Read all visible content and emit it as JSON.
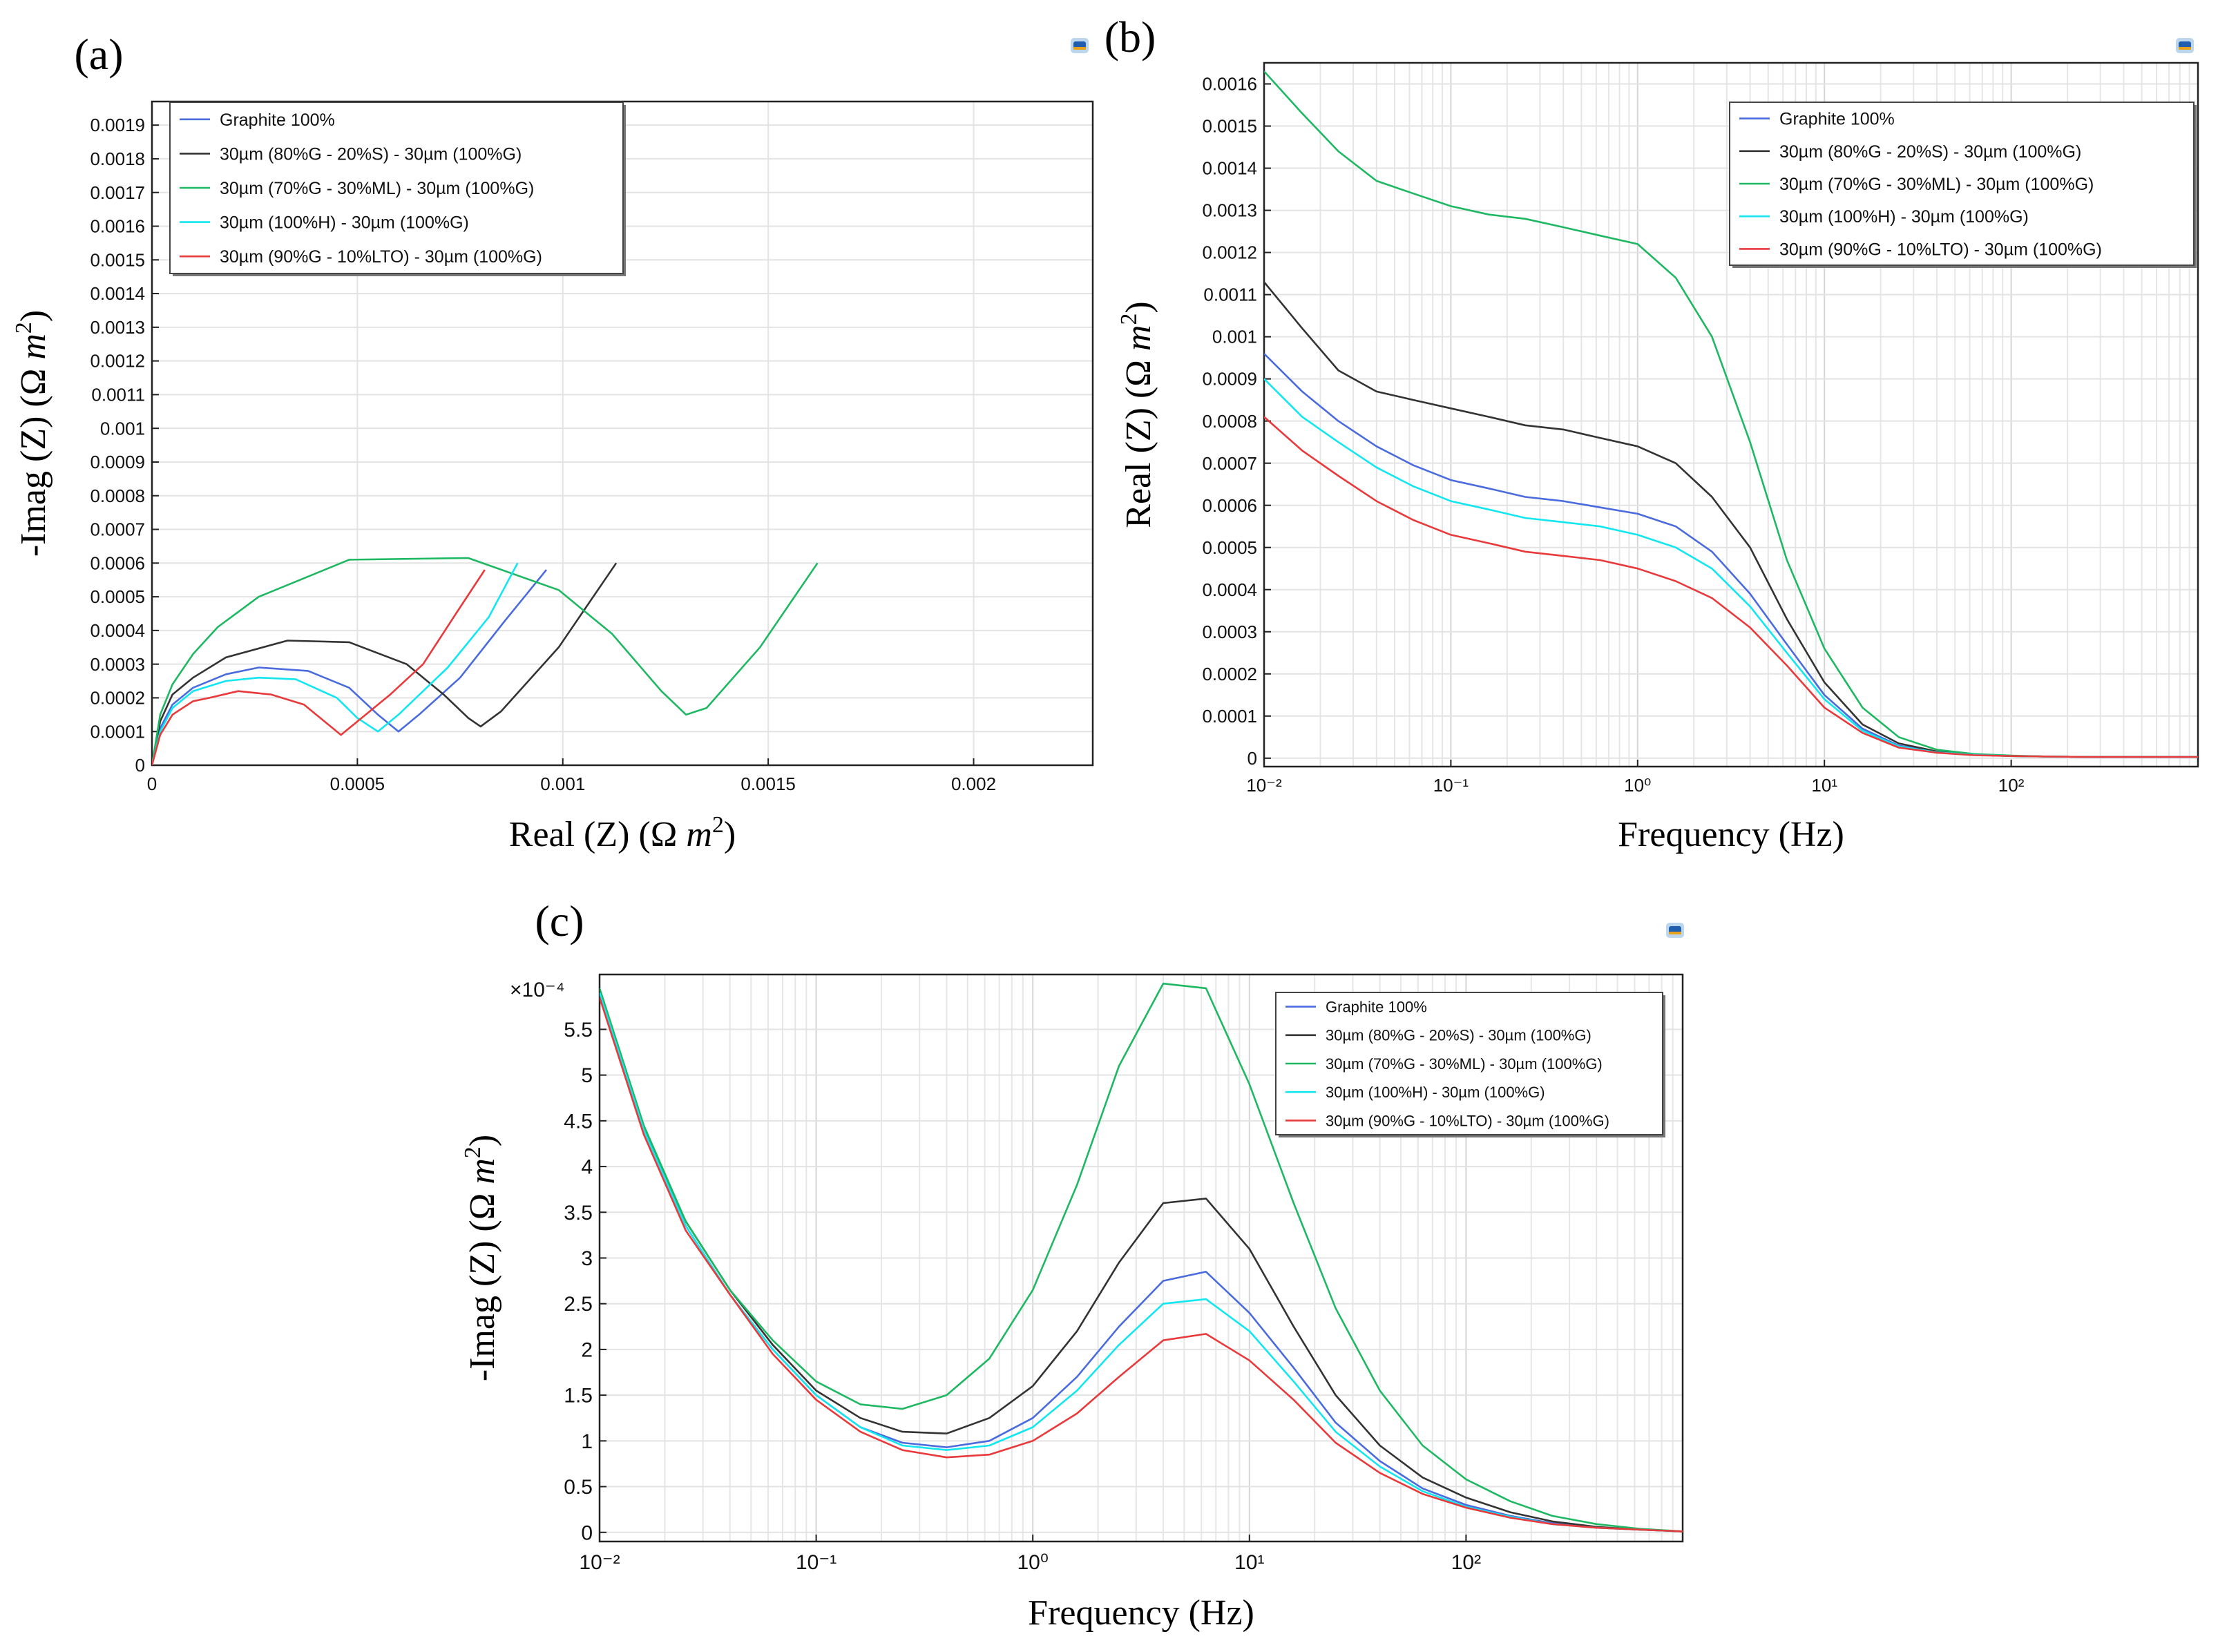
{
  "series_styles": [
    {
      "name": "Graphite 100%",
      "color": "#4a6bde"
    },
    {
      "name": "30µm (80%G - 20%S) - 30µm (100%G)",
      "color": "#333333"
    },
    {
      "name": "30µm (70%G - 30%ML) - 30µm (100%G)",
      "color": "#1db861"
    },
    {
      "name": "30µm (100%H) - 30µm (100%G)",
      "color": "#12e6f0"
    },
    {
      "name": "30µm (90%G - 10%LTO) - 30µm (100%G)",
      "color": "#e8393b"
    }
  ],
  "icons": {
    "toolbar": "comsol-logo-icon"
  },
  "chart_data": [
    {
      "id": "a",
      "panel_label": "(a)",
      "type": "line",
      "xlabel": "Real (Z) (Ω m²)",
      "ylabel": "-Imag (Z) (Ω m²)",
      "xlim": [
        0,
        0.00229
      ],
      "ylim": [
        0,
        0.00197
      ],
      "xscale": "linear",
      "xticks": [
        0,
        0.0005,
        0.001,
        0.0015,
        0.002
      ],
      "xtick_labels": [
        "0",
        "0.0005",
        "0.001",
        "0.0015",
        "0.002"
      ],
      "yticks": [
        0,
        0.0001,
        0.0002,
        0.0003,
        0.0004,
        0.0005,
        0.0006,
        0.0007,
        0.0008,
        0.0009,
        0.001,
        0.0011,
        0.0012,
        0.0013,
        0.0014,
        0.0015,
        0.0016,
        0.0017,
        0.0018,
        0.0019
      ],
      "ytick_labels": [
        "0",
        "0.0001",
        "0.0002",
        "0.0003",
        "0.0004",
        "0.0005",
        "0.0006",
        "0.0007",
        "0.0008",
        "0.0009",
        "0.001",
        "0.0011",
        "0.0012",
        "0.0013",
        "0.0014",
        "0.0015",
        "0.0016",
        "0.0017",
        "0.0018",
        "0.0019"
      ],
      "grid": true,
      "legend_position": "top-left",
      "series": [
        {
          "name": "Graphite 100%",
          "x": [
            0,
            2e-05,
            5e-05,
            0.0001,
            0.00018,
            0.00026,
            0.00038,
            0.00048,
            0.00055,
            0.0006,
            0.00065,
            0.00075,
            0.00086,
            0.00096
          ],
          "y": [
            0,
            0.00011,
            0.00018,
            0.00023,
            0.00027,
            0.00029,
            0.00028,
            0.00023,
            0.00015,
            0.0001,
            0.00015,
            0.00026,
            0.00043,
            0.00058
          ]
        },
        {
          "name": "30µm (80%G - 20%S) - 30µm (100%G)",
          "x": [
            0,
            2e-05,
            5e-05,
            0.0001,
            0.00018,
            0.00033,
            0.00048,
            0.00062,
            0.00071,
            0.00077,
            0.0008,
            0.00085,
            0.00099,
            0.00113
          ],
          "y": [
            0,
            0.00013,
            0.00021,
            0.00026,
            0.00032,
            0.00037,
            0.000365,
            0.0003,
            0.00021,
            0.00014,
            0.000115,
            0.00016,
            0.00035,
            0.0006
          ]
        },
        {
          "name": "30µm (70%G - 30%ML) - 30µm (100%G)",
          "x": [
            0,
            2e-05,
            5e-05,
            0.0001,
            0.00016,
            0.00026,
            0.00048,
            0.00077,
            0.00099,
            0.00112,
            0.00124,
            0.0013,
            0.00135,
            0.00148,
            0.00162
          ],
          "y": [
            0,
            0.00015,
            0.00024,
            0.00033,
            0.00041,
            0.0005,
            0.00061,
            0.000615,
            0.00052,
            0.00039,
            0.00022,
            0.00015,
            0.00017,
            0.00035,
            0.0006
          ]
        },
        {
          "name": "30µm (100%H) - 30µm (100%G)",
          "x": [
            0,
            2e-05,
            5e-05,
            0.0001,
            0.00018,
            0.00026,
            0.00035,
            0.00045,
            0.0005,
            0.00055,
            0.0006,
            0.00072,
            0.00082,
            0.00089
          ],
          "y": [
            0,
            0.0001,
            0.00017,
            0.00022,
            0.00025,
            0.00026,
            0.000255,
            0.0002,
            0.00014,
            0.0001,
            0.00015,
            0.00029,
            0.00044,
            0.0006
          ]
        },
        {
          "name": "30µm (90%G - 10%LTO) - 30µm (100%G)",
          "x": [
            0,
            2e-05,
            5e-05,
            0.0001,
            0.00014,
            0.00021,
            0.00029,
            0.00037,
            0.00042,
            0.00046,
            0.0005,
            0.00058,
            0.00066,
            0.00074,
            0.00081
          ],
          "y": [
            0,
            9e-05,
            0.00015,
            0.00019,
            0.0002,
            0.00022,
            0.00021,
            0.00018,
            0.00013,
            9e-05,
            0.00013,
            0.00021,
            0.0003,
            0.00045,
            0.00058
          ]
        }
      ]
    },
    {
      "id": "b",
      "panel_label": "(b)",
      "type": "line",
      "xlabel": "Frequency (Hz)",
      "ylabel": "Real (Z) (Ω m²)",
      "xlim": [
        0.01,
        1000
      ],
      "ylim": [
        -2e-05,
        0.00165
      ],
      "xscale": "log",
      "xticks": [
        0.01,
        0.1,
        1,
        10,
        100
      ],
      "xtick_labels": [
        "10⁻²",
        "10⁻¹",
        "10⁰",
        "10¹",
        "10²"
      ],
      "yticks": [
        0,
        0.0001,
        0.0002,
        0.0003,
        0.0004,
        0.0005,
        0.0006,
        0.0007,
        0.0008,
        0.0009,
        0.001,
        0.0011,
        0.0012,
        0.0013,
        0.0014,
        0.0015,
        0.0016
      ],
      "ytick_labels": [
        "0",
        "0.0001",
        "0.0002",
        "0.0003",
        "0.0004",
        "0.0005",
        "0.0006",
        "0.0007",
        "0.0008",
        "0.0009",
        "0.001",
        "0.0011",
        "0.0012",
        "0.0013",
        "0.0014",
        "0.0015",
        "0.0016"
      ],
      "grid": true,
      "legend_position": "top-right",
      "x": [
        0.01,
        0.016,
        0.025,
        0.04,
        0.063,
        0.1,
        0.16,
        0.25,
        0.4,
        0.63,
        1,
        1.6,
        2.5,
        4,
        6.3,
        10,
        16,
        25,
        40,
        63,
        100,
        160,
        250,
        400,
        630,
        1000
      ],
      "series": [
        {
          "name": "Graphite 100%",
          "y": [
            0.00096,
            0.00087,
            0.0008,
            0.00074,
            0.000695,
            0.00066,
            0.00064,
            0.00062,
            0.00061,
            0.000595,
            0.00058,
            0.00055,
            0.00049,
            0.00039,
            0.00027,
            0.00015,
            7e-05,
            3e-05,
            1.5e-05,
            8e-06,
            5e-06,
            4e-06,
            3e-06,
            3e-06,
            3e-06,
            3e-06
          ]
        },
        {
          "name": "30µm (80%G - 20%S) - 30µm (100%G)",
          "y": [
            0.00113,
            0.00102,
            0.00092,
            0.00087,
            0.00085,
            0.00083,
            0.00081,
            0.00079,
            0.00078,
            0.00076,
            0.00074,
            0.0007,
            0.00062,
            0.0005,
            0.00033,
            0.00018,
            8e-05,
            3.5e-05,
            1.6e-05,
            9e-06,
            5e-06,
            4e-06,
            3e-06,
            3e-06,
            3e-06,
            3e-06
          ]
        },
        {
          "name": "30µm (70%G - 30%ML) - 30µm (100%G)",
          "y": [
            0.00163,
            0.00153,
            0.00144,
            0.00137,
            0.00134,
            0.00131,
            0.00129,
            0.00128,
            0.00126,
            0.00124,
            0.00122,
            0.00114,
            0.001,
            0.00075,
            0.00047,
            0.00026,
            0.00012,
            5e-05,
            2e-05,
            1e-05,
            6e-06,
            4e-06,
            3e-06,
            3e-06,
            3e-06,
            3e-06
          ]
        },
        {
          "name": "30µm (100%H) - 30µm (100%G)",
          "y": [
            0.0009,
            0.00081,
            0.00075,
            0.00069,
            0.000645,
            0.00061,
            0.00059,
            0.00057,
            0.00056,
            0.00055,
            0.00053,
            0.0005,
            0.00045,
            0.00036,
            0.00025,
            0.00014,
            6.5e-05,
            2.8e-05,
            1.4e-05,
            8e-06,
            5e-06,
            4e-06,
            3e-06,
            3e-06,
            3e-06,
            3e-06
          ]
        },
        {
          "name": "30µm (90%G - 10%LTO) - 30µm (100%G)",
          "y": [
            0.00081,
            0.00073,
            0.00067,
            0.00061,
            0.000565,
            0.00053,
            0.00051,
            0.00049,
            0.00048,
            0.00047,
            0.00045,
            0.00042,
            0.00038,
            0.00031,
            0.00022,
            0.00012,
            6e-05,
            2.5e-05,
            1.3e-05,
            7e-06,
            5e-06,
            4e-06,
            3e-06,
            3e-06,
            3e-06,
            3e-06
          ]
        }
      ]
    },
    {
      "id": "c",
      "panel_label": "(c)",
      "type": "line",
      "xlabel": "Frequency (Hz)",
      "ylabel": "-Imag (Z) (Ω m²)",
      "y_multiplier": "×10⁻⁴",
      "xlim": [
        0.01,
        1000
      ],
      "ylim": [
        -0.1,
        6.1
      ],
      "xscale": "log",
      "xticks": [
        0.01,
        0.1,
        1,
        10,
        100
      ],
      "xtick_labels": [
        "10⁻²",
        "10⁻¹",
        "10⁰",
        "10¹",
        "10²"
      ],
      "yticks": [
        0,
        0.5,
        1,
        1.5,
        2,
        2.5,
        3,
        3.5,
        4,
        4.5,
        5,
        5.5
      ],
      "ytick_labels": [
        "0",
        "0.5",
        "1",
        "1.5",
        "2",
        "2.5",
        "3",
        "3.5",
        "4",
        "4.5",
        "5",
        "5.5"
      ],
      "grid": true,
      "legend_position": "top-right",
      "x": [
        0.01,
        0.016,
        0.025,
        0.04,
        0.063,
        0.1,
        0.16,
        0.25,
        0.4,
        0.63,
        1,
        1.6,
        2.5,
        4,
        6.3,
        10,
        16,
        25,
        40,
        63,
        100,
        160,
        250,
        400,
        630,
        1000
      ],
      "series": [
        {
          "name": "Graphite 100%",
          "y": [
            5.9,
            4.4,
            3.35,
            2.6,
            2.0,
            1.5,
            1.15,
            0.98,
            0.93,
            1.0,
            1.25,
            1.7,
            2.25,
            2.75,
            2.85,
            2.4,
            1.8,
            1.2,
            0.78,
            0.48,
            0.3,
            0.18,
            0.1,
            0.05,
            0.03,
            0.01
          ]
        },
        {
          "name": "30µm (80%G - 20%S) - 30µm (100%G)",
          "y": [
            5.9,
            4.4,
            3.4,
            2.65,
            2.05,
            1.55,
            1.25,
            1.1,
            1.08,
            1.25,
            1.6,
            2.2,
            2.95,
            3.6,
            3.65,
            3.1,
            2.25,
            1.5,
            0.95,
            0.6,
            0.38,
            0.22,
            0.12,
            0.06,
            0.03,
            0.01
          ]
        },
        {
          "name": "30µm (70%G - 30%ML) - 30µm (100%G)",
          "y": [
            5.95,
            4.45,
            3.4,
            2.65,
            2.1,
            1.65,
            1.4,
            1.35,
            1.5,
            1.9,
            2.65,
            3.8,
            5.1,
            6.0,
            5.95,
            4.9,
            3.6,
            2.45,
            1.55,
            0.95,
            0.58,
            0.34,
            0.18,
            0.09,
            0.04,
            0.01
          ]
        },
        {
          "name": "30µm (100%H) - 30µm (100%G)",
          "y": [
            5.9,
            4.4,
            3.35,
            2.6,
            2.0,
            1.5,
            1.15,
            0.95,
            0.9,
            0.95,
            1.15,
            1.55,
            2.05,
            2.5,
            2.55,
            2.2,
            1.65,
            1.1,
            0.72,
            0.45,
            0.28,
            0.17,
            0.09,
            0.05,
            0.03,
            0.01
          ]
        },
        {
          "name": "30µm (90%G - 10%LTO) - 30µm (100%G)",
          "y": [
            5.85,
            4.35,
            3.3,
            2.6,
            1.95,
            1.45,
            1.1,
            0.9,
            0.82,
            0.85,
            1.0,
            1.3,
            1.7,
            2.1,
            2.17,
            1.88,
            1.45,
            0.98,
            0.65,
            0.42,
            0.27,
            0.16,
            0.09,
            0.05,
            0.03,
            0.01
          ]
        }
      ]
    }
  ]
}
